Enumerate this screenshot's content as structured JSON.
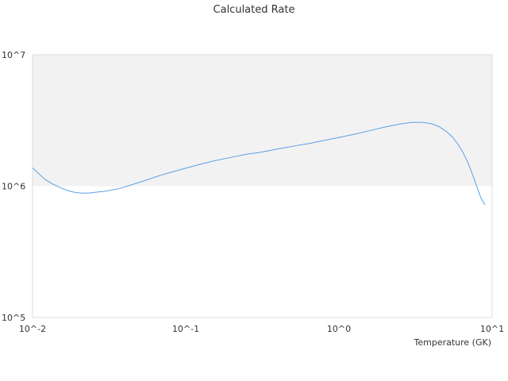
{
  "chart_data": {
    "type": "line",
    "title": "Calculated Rate",
    "xlabel": "Temperature (GK)",
    "ylabel": "",
    "xscale": "log",
    "yscale": "log",
    "xlim": [
      0.01,
      10
    ],
    "ylim": [
      100000,
      10000000
    ],
    "x_ticks": [
      "10^-2",
      "10^-1",
      "10^0",
      "10^1"
    ],
    "y_ticks": [
      "10^5",
      "10^6",
      "10^7"
    ],
    "grid": false,
    "legend": "none",
    "colors": {
      "line": "#5aa0e6",
      "band": "#f2f2f2",
      "axis": "#dddddd"
    },
    "series": [
      {
        "x": [
          0.01,
          0.011,
          0.012,
          0.0135,
          0.015,
          0.017,
          0.019,
          0.021,
          0.023,
          0.025,
          0.03,
          0.037,
          0.045,
          0.055,
          0.07,
          0.085,
          0.1,
          0.12,
          0.15,
          0.2,
          0.25,
          0.3,
          0.4,
          0.5,
          0.65,
          0.8,
          1.0,
          1.3,
          1.6,
          2.0,
          2.5,
          3.0,
          3.5,
          4.0,
          4.5,
          5.0,
          5.5,
          6.0,
          6.5,
          7.0,
          7.5,
          8.0,
          8.5,
          9.0
        ],
        "y": [
          1380000,
          1240000,
          1130000,
          1040000,
          980000,
          925000,
          895000,
          885000,
          885000,
          895000,
          915000,
          960000,
          1030000,
          1110000,
          1220000,
          1300000,
          1370000,
          1450000,
          1550000,
          1660000,
          1750000,
          1800000,
          1920000,
          2010000,
          2120000,
          2230000,
          2350000,
          2500000,
          2650000,
          2820000,
          2970000,
          3060000,
          3060000,
          2990000,
          2840000,
          2620000,
          2370000,
          2080000,
          1780000,
          1480000,
          1200000,
          970000,
          800000,
          720000
        ]
      }
    ]
  }
}
